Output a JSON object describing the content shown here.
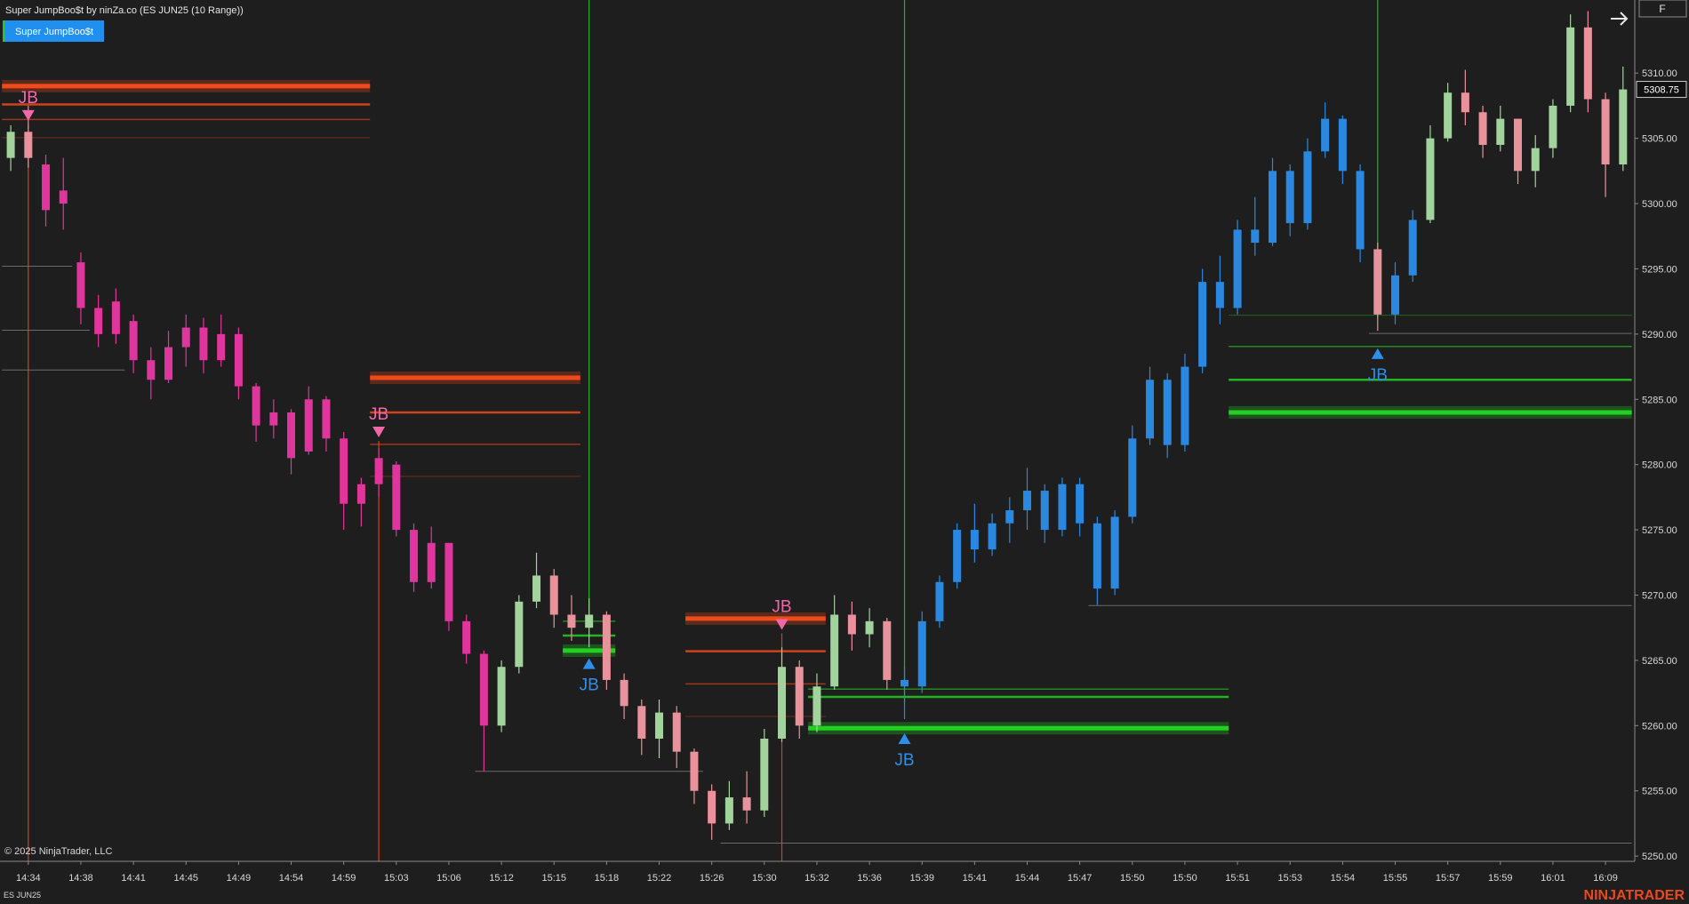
{
  "header": {
    "title": "Super JumpBoo$t by ninZa.co (ES JUN25 (10 Range))",
    "indicator_button": "Super JumpBoo$t",
    "corner_button": "F"
  },
  "chart_data": {
    "type": "candlestick",
    "ylim": [
      5249.6,
      5315.6
    ],
    "yticks": [
      {
        "value": 5250,
        "label": "5250.00"
      },
      {
        "value": 5255,
        "label": "5255.00"
      },
      {
        "value": 5260,
        "label": "5260.00"
      },
      {
        "value": 5265,
        "label": "5265.00"
      },
      {
        "value": 5270,
        "label": "5270.00"
      },
      {
        "value": 5275,
        "label": "5275.00"
      },
      {
        "value": 5280,
        "label": "5280.00"
      },
      {
        "value": 5285,
        "label": "5285.00"
      },
      {
        "value": 5290,
        "label": "5290.00"
      },
      {
        "value": 5295,
        "label": "5295.00"
      },
      {
        "value": 5300,
        "label": "5300.00"
      },
      {
        "value": 5305,
        "label": "5305.00"
      },
      {
        "value": 5310,
        "label": "5310.00"
      }
    ],
    "xticks": [
      {
        "value": 1,
        "label": "14:34"
      },
      {
        "value": 4,
        "label": "14:38"
      },
      {
        "value": 7,
        "label": "14:41"
      },
      {
        "value": 10,
        "label": "14:45"
      },
      {
        "value": 13,
        "label": "14:49"
      },
      {
        "value": 16,
        "label": "14:54"
      },
      {
        "value": 19,
        "label": "14:59"
      },
      {
        "value": 22,
        "label": "15:03"
      },
      {
        "value": 25,
        "label": "15:06"
      },
      {
        "value": 28,
        "label": "15:12"
      },
      {
        "value": 31,
        "label": "15:15"
      },
      {
        "value": 34,
        "label": "15:18"
      },
      {
        "value": 37,
        "label": "15:22"
      },
      {
        "value": 40,
        "label": "15:26"
      },
      {
        "value": 43,
        "label": "15:30"
      },
      {
        "value": 46,
        "label": "15:32"
      },
      {
        "value": 49,
        "label": "15:36"
      },
      {
        "value": 52,
        "label": "15:39"
      },
      {
        "value": 55,
        "label": "15:41"
      },
      {
        "value": 58,
        "label": "15:44"
      },
      {
        "value": 61,
        "label": "15:47"
      },
      {
        "value": 64,
        "label": "15:50"
      },
      {
        "value": 67,
        "label": "15:50"
      },
      {
        "value": 70,
        "label": "15:51"
      },
      {
        "value": 73,
        "label": "15:53"
      },
      {
        "value": 76,
        "label": "15:54"
      },
      {
        "value": 79,
        "label": "15:55"
      },
      {
        "value": 82,
        "label": "15:57"
      },
      {
        "value": 85,
        "label": "15:59"
      },
      {
        "value": 88,
        "label": "16:01"
      },
      {
        "value": 91,
        "label": "16:09"
      }
    ],
    "open": [
      5303.5,
      5305.5,
      5303,
      5300,
      5295.5,
      5292,
      5290,
      5291,
      5288,
      5286.5,
      5289,
      5290.5,
      5288,
      5290,
      5286,
      5283,
      5284,
      5281,
      5285,
      5282,
      5277,
      5278.5,
      5280,
      5275,
      5271,
      5274,
      5268,
      5265.5,
      5260,
      5264.5,
      5269.5,
      5271.5,
      5268.5,
      5267.5,
      5268.5,
      5263.5,
      5261.5,
      5259,
      5261,
      5258,
      5255,
      5252.5,
      5254.5,
      5253.5,
      5259,
      5264.5,
      5260,
      5263,
      5268.5,
      5267,
      5268,
      5263.5,
      5263,
      5268,
      5271,
      5275,
      5273.5,
      5275.5,
      5276.5,
      5278,
      5275,
      5278.5,
      5275.5,
      5270.5,
      5276,
      5282,
      5286.5,
      5281.5,
      5287.5,
      5294,
      5292,
      5298,
      5297,
      5302.5,
      5298.5,
      5304,
      5306.5,
      5302.5,
      5296.5,
      5291.5,
      5294.5,
      5298.75,
      5305,
      5308.5,
      5307,
      5304.5,
      5306.5,
      5302.5,
      5304.25,
      5307.5,
      5313.5,
      5308,
      5303
    ],
    "high": [
      5306,
      5307.5,
      5303.75,
      5303.5,
      5296.25,
      5293,
      5293.5,
      5291.5,
      5289,
      5290.25,
      5291.5,
      5291.25,
      5291.5,
      5290.5,
      5286.25,
      5285,
      5284.25,
      5286,
      5285.25,
      5282.5,
      5279,
      5281.25,
      5280.25,
      5275.5,
      5275.25,
      5274,
      5268.5,
      5265.75,
      5265,
      5270,
      5273.25,
      5272,
      5270,
      5269.75,
      5268.75,
      5264,
      5262,
      5262,
      5261.5,
      5258.25,
      5255.5,
      5255.75,
      5256.5,
      5259.75,
      5266,
      5265,
      5264,
      5270,
      5269.5,
      5269,
      5268.25,
      5264.5,
      5268.75,
      5271.5,
      5275.5,
      5277,
      5276.25,
      5277.5,
      5279.75,
      5278.5,
      5279,
      5279,
      5276,
      5276.5,
      5283,
      5287.5,
      5287,
      5288.5,
      5295,
      5296,
      5298.75,
      5300.5,
      5303.5,
      5303,
      5305,
      5307.75,
      5306.75,
      5303,
      5297,
      5295.5,
      5299.5,
      5306,
      5309.25,
      5310.25,
      5307.5,
      5307.5,
      5306.5,
      5305.25,
      5308,
      5314.5,
      5314.75,
      5308.5,
      5310.5
    ],
    "low": [
      5302.5,
      5302.75,
      5298.25,
      5298,
      5290.75,
      5289,
      5289.25,
      5287,
      5285,
      5286.25,
      5287.5,
      5287,
      5287.5,
      5285,
      5281.75,
      5282,
      5279.25,
      5280.75,
      5281,
      5275,
      5275.25,
      5277.5,
      5274.5,
      5270.25,
      5270.5,
      5267.25,
      5264.75,
      5256.5,
      5259.5,
      5264,
      5269,
      5267.5,
      5266.5,
      5266,
      5262.75,
      5260.5,
      5257.75,
      5257.5,
      5256.75,
      5254,
      5251.25,
      5252,
      5252.5,
      5253,
      5258.75,
      5259,
      5259.5,
      5262.75,
      5265.75,
      5266,
      5262.75,
      5260.5,
      5262.5,
      5267.5,
      5270.5,
      5272.5,
      5273,
      5274,
      5275,
      5274,
      5274.5,
      5274.5,
      5269.25,
      5270,
      5275.5,
      5281.5,
      5280.5,
      5281,
      5287,
      5290.75,
      5291.5,
      5296,
      5296.75,
      5297.5,
      5298,
      5303.5,
      5301.5,
      5295.5,
      5290.25,
      5290.75,
      5294,
      5298.5,
      5304.75,
      5306,
      5303.5,
      5304,
      5301.5,
      5301.25,
      5303.5,
      5307,
      5307,
      5300.5,
      5302.5
    ],
    "close": [
      5305.5,
      5303.5,
      5299.5,
      5301,
      5292,
      5290,
      5292.5,
      5288,
      5286.5,
      5289,
      5290.5,
      5288,
      5290,
      5286,
      5283,
      5284,
      5280.5,
      5285,
      5282,
      5277,
      5278.5,
      5280.5,
      5275,
      5271,
      5274,
      5268,
      5265.5,
      5260,
      5264.5,
      5269.5,
      5271.5,
      5268.5,
      5267.5,
      5268.5,
      5263.5,
      5261.5,
      5259,
      5261,
      5258,
      5255,
      5252.5,
      5254.5,
      5253.5,
      5259,
      5264.5,
      5260,
      5263,
      5268.5,
      5267,
      5268,
      5263.5,
      5263,
      5268,
      5271,
      5275,
      5273.5,
      5275.5,
      5276.5,
      5278,
      5275,
      5278.5,
      5275.5,
      5270.5,
      5276,
      5282,
      5286.5,
      5281.5,
      5287.5,
      5294,
      5292,
      5298,
      5297,
      5302.5,
      5298.5,
      5304,
      5306.5,
      5302.5,
      5296.5,
      5291.5,
      5294.5,
      5298.75,
      5305,
      5308.5,
      5307,
      5304.5,
      5306.5,
      5302.5,
      5304.25,
      5307.5,
      5313.5,
      5308,
      5303,
      5308.75
    ],
    "colors": [
      "#a3d39c",
      "#e8939b",
      "#e0359c",
      "#e0359c",
      "#e0359c",
      "#e0359c",
      "#e0359c",
      "#e0359c",
      "#e0359c",
      "#e0359c",
      "#e0359c",
      "#e0359c",
      "#e0359c",
      "#e0359c",
      "#e0359c",
      "#e0359c",
      "#e0359c",
      "#e0359c",
      "#e0359c",
      "#e0359c",
      "#e0359c",
      "#e0359c",
      "#e0359c",
      "#e0359c",
      "#e0359c",
      "#e0359c",
      "#e0359c",
      "#e0359c",
      "#a3d39c",
      "#a3d39c",
      "#a3d39c",
      "#e8939b",
      "#e8939b",
      "#a3d39c",
      "#e8939b",
      "#e8939b",
      "#e8939b",
      "#a3d39c",
      "#e8939b",
      "#e8939b",
      "#e8939b",
      "#a3d39c",
      "#e8939b",
      "#a3d39c",
      "#a3d39c",
      "#e8939b",
      "#a3d39c",
      "#a3d39c",
      "#e8939b",
      "#a3d39c",
      "#e8939b",
      "#2b88e0",
      "#2b88e0",
      "#2b88e0",
      "#2b88e0",
      "#2b88e0",
      "#2b88e0",
      "#2b88e0",
      "#2b88e0",
      "#2b88e0",
      "#2b88e0",
      "#2b88e0",
      "#2b88e0",
      "#2b88e0",
      "#2b88e0",
      "#2b88e0",
      "#2b88e0",
      "#2b88e0",
      "#2b88e0",
      "#2b88e0",
      "#2b88e0",
      "#2b88e0",
      "#2b88e0",
      "#2b88e0",
      "#2b88e0",
      "#2b88e0",
      "#2b88e0",
      "#2b88e0",
      "#e8939b",
      "#2b88e0",
      "#2b88e0",
      "#a3d39c",
      "#a3d39c",
      "#e8939b",
      "#e8939b",
      "#a3d39c",
      "#e8939b",
      "#a3d39c",
      "#a3d39c",
      "#a3d39c",
      "#e8939b",
      "#e8939b",
      "#a3d39c"
    ],
    "last_price": 5308.75,
    "sell_color": "#ee4a1a",
    "buy_color": "#22d022",
    "sell_signal_color": "#f068a8",
    "buy_signal_color": "#2e8fe8",
    "guide_color": "#6a6a6a",
    "zones": [
      {
        "side": "sell",
        "from": 0,
        "to": 20,
        "prices": [
          5309.0,
          5307.6,
          5306.45,
          5305.05
        ]
      },
      {
        "side": "sell",
        "from": 21,
        "to": 32,
        "prices": [
          5286.65,
          5284.0,
          5281.55,
          5279.1
        ]
      },
      {
        "side": "buy",
        "from": 32,
        "to": 34,
        "prices": [
          5265.75,
          5266.9,
          5268.0
        ]
      },
      {
        "side": "sell",
        "from": 39,
        "to": 46,
        "prices": [
          5268.2,
          5265.7,
          5263.2,
          5260.7
        ]
      },
      {
        "side": "buy",
        "from": 46,
        "to": 69,
        "prices": [
          5259.8,
          5262.2,
          5262.8
        ]
      },
      {
        "side": "buy",
        "from": 70,
        "to": 92,
        "prices": [
          5284.0,
          5286.5,
          5289.05,
          5291.45
        ]
      }
    ],
    "guides": [
      {
        "price": 5295.2,
        "from": 0,
        "to": 3
      },
      {
        "price": 5290.3,
        "from": 0,
        "to": 4
      },
      {
        "price": 5287.25,
        "from": 0,
        "to": 6
      },
      {
        "price": 5256.5,
        "from": 27,
        "to": 39
      },
      {
        "price": 5251.0,
        "from": 41,
        "to": 92
      },
      {
        "price": 5269.2,
        "from": 62,
        "to": 92
      },
      {
        "price": 5290.05,
        "from": 78,
        "to": 92
      }
    ],
    "signals": [
      {
        "side": "sell",
        "label": "JB",
        "bar": 1,
        "price": 5306.75
      },
      {
        "side": "sell",
        "label": "JB",
        "bar": 21,
        "price": 5282.5
      },
      {
        "side": "buy",
        "label": "JB",
        "bar": 33,
        "price": 5264.75
      },
      {
        "side": "sell",
        "label": "JB",
        "bar": 44,
        "price": 5267.75
      },
      {
        "side": "buy",
        "label": "JB",
        "bar": 51,
        "price": 5259.0
      },
      {
        "side": "buy",
        "label": "JB",
        "bar": 78,
        "price": 5288.5
      }
    ]
  },
  "footer": {
    "copyright": "© 2025 NinjaTrader, LLC",
    "instrument": "ES JUN25",
    "logo": "NINJATRADER"
  }
}
